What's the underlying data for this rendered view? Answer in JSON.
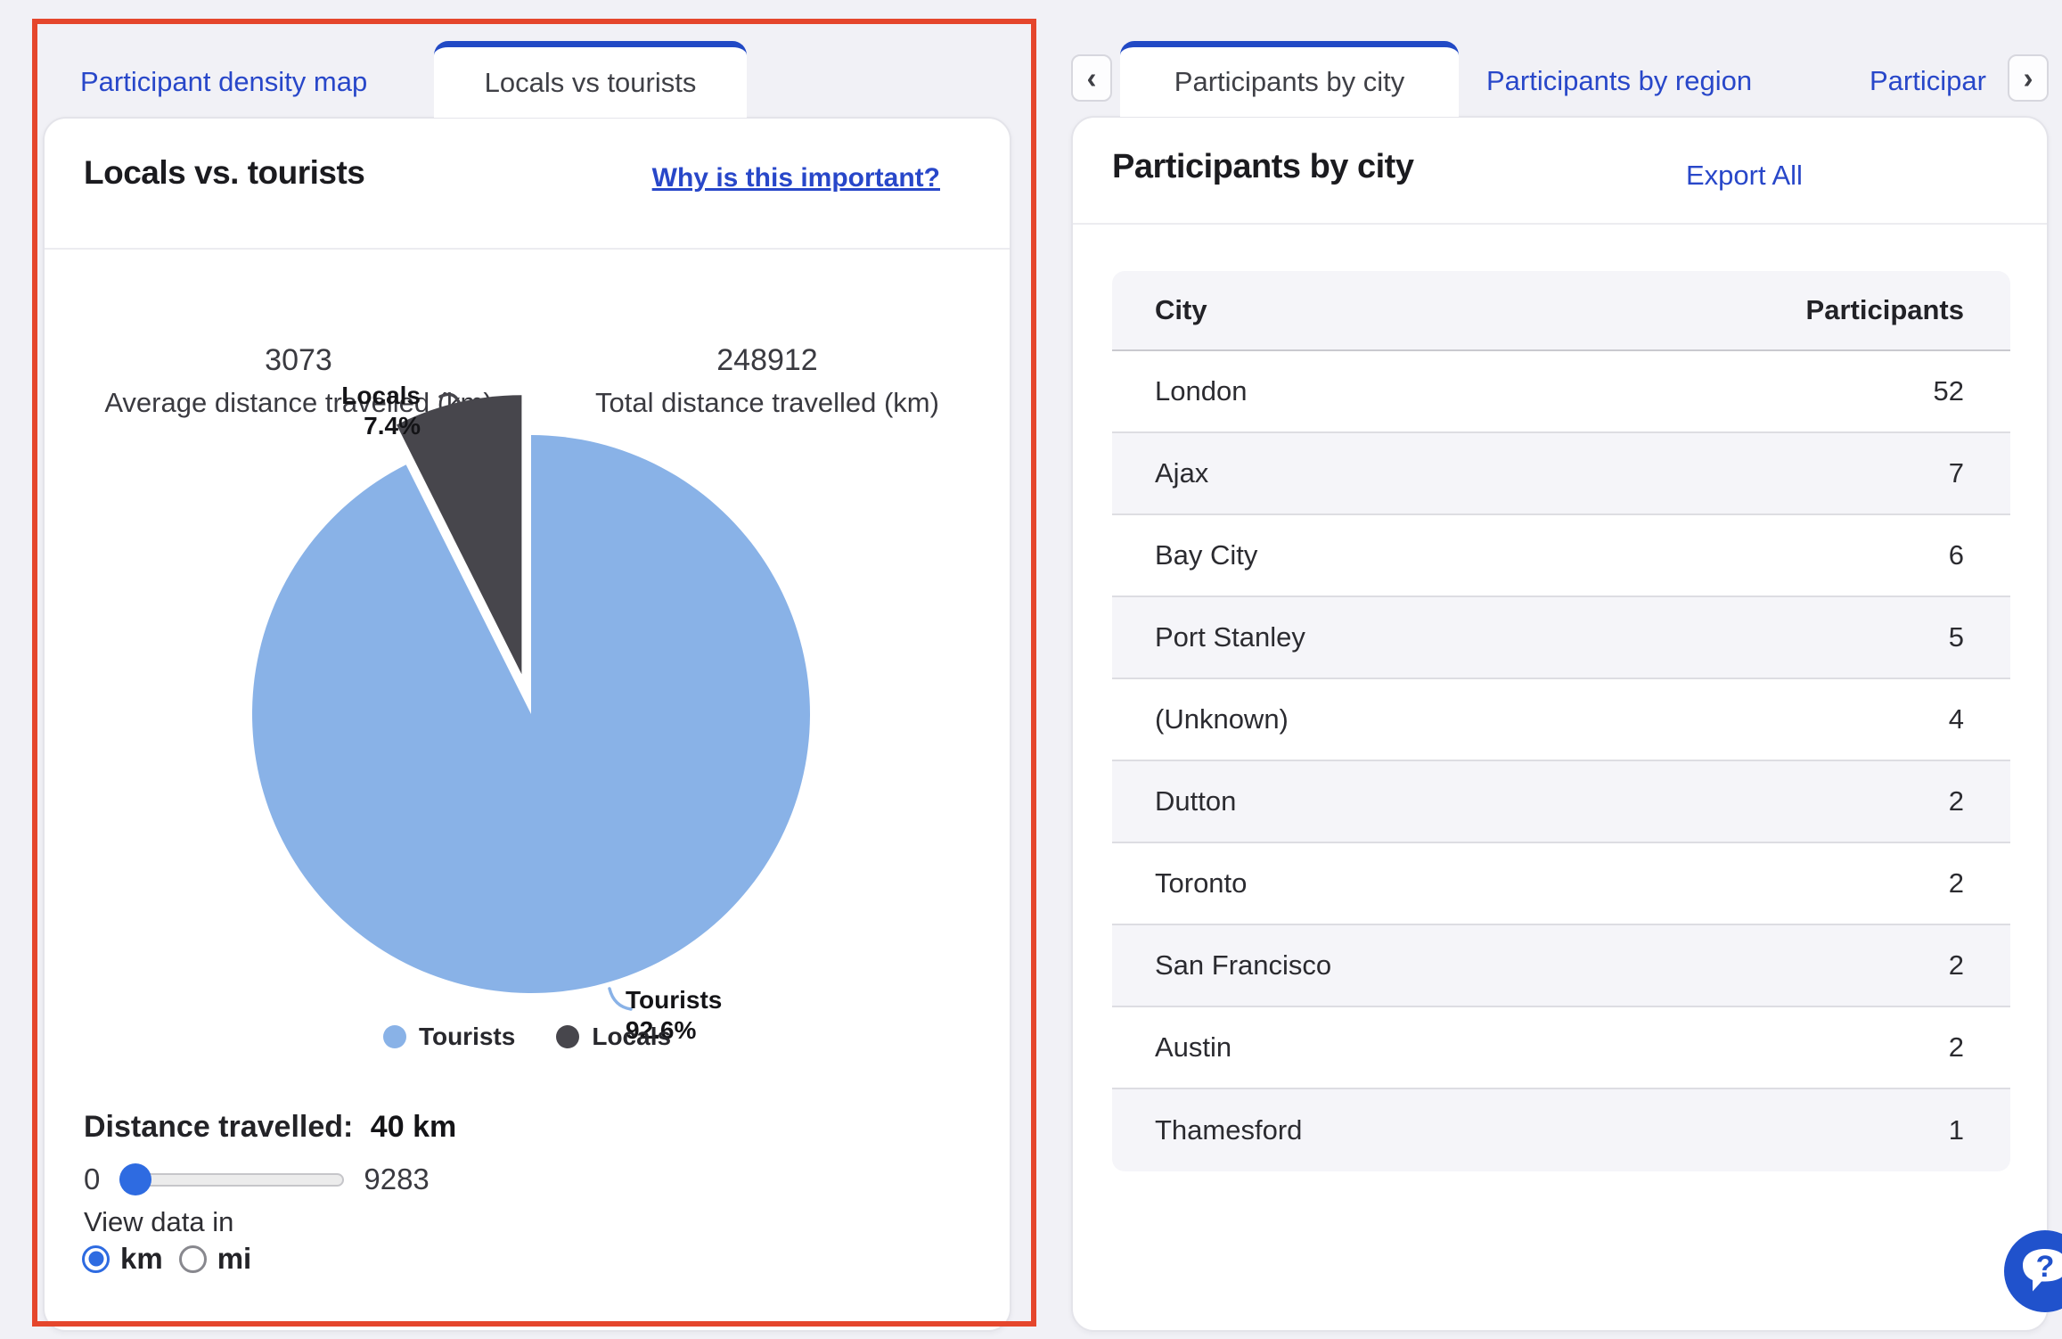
{
  "left_panel": {
    "tabs": [
      {
        "label": "Participant density map",
        "active": false
      },
      {
        "label": "Locals vs tourists",
        "active": true
      }
    ],
    "title": "Locals vs. tourists",
    "info_link": "Why is this important?",
    "stats": [
      {
        "value": "3073",
        "label": "Average distance travelled (km)"
      },
      {
        "value": "248912",
        "label": "Total distance travelled (km)"
      }
    ],
    "distance_label_prefix": "Distance travelled:",
    "slider": {
      "min": 0,
      "max": 9283,
      "value": 40,
      "unit": "km"
    },
    "view_data_in": "View data in",
    "units": [
      {
        "label": "km",
        "selected": true
      },
      {
        "label": "mi",
        "selected": false
      }
    ]
  },
  "right_panel": {
    "tabs": [
      {
        "label": "Participants by city",
        "active": true
      },
      {
        "label": "Participants by region",
        "active": false
      },
      {
        "label": "Participar",
        "active": false,
        "truncated": true
      }
    ],
    "title": "Participants by city",
    "export_label": "Export All",
    "table": {
      "columns": [
        "City",
        "Participants"
      ],
      "rows": [
        [
          "London",
          "52"
        ],
        [
          "Ajax",
          "7"
        ],
        [
          "Bay City",
          "6"
        ],
        [
          "Port Stanley",
          "5"
        ],
        [
          "(Unknown)",
          "4"
        ],
        [
          "Dutton",
          "2"
        ],
        [
          "Toronto",
          "2"
        ],
        [
          "San Francisco",
          "2"
        ],
        [
          "Austin",
          "2"
        ],
        [
          "Thamesford",
          "1"
        ]
      ]
    }
  },
  "chart_data": {
    "type": "pie",
    "title": "Locals vs. tourists",
    "slices": [
      {
        "label": "Tourists",
        "value": 92.6,
        "color": "#89b2e7",
        "exploded": false
      },
      {
        "label": "Locals",
        "value": 7.4,
        "color": "#47464c",
        "exploded": true
      }
    ],
    "legend": [
      "Tourists",
      "Locals"
    ],
    "legend_position": "bottom",
    "start_angle_deg": 0,
    "direction": "clockwise"
  },
  "icons": {
    "prev": "‹",
    "next": "›",
    "help": "?"
  },
  "colors": {
    "accent_blue": "#2847c9",
    "tab_bar_blue": "#2149c5",
    "control_blue": "#2e6be1",
    "help_blue": "#2052cc",
    "highlight_red": "#e5462c",
    "pie_tourists": "#89b2e7",
    "pie_locals": "#47464c"
  }
}
